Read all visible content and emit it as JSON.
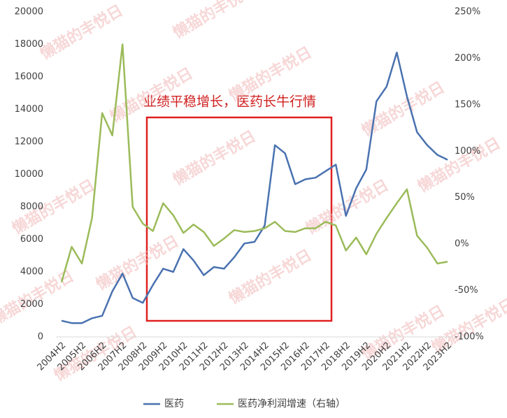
{
  "chart_data": {
    "type": "line",
    "categories": [
      "2004H2",
      null,
      "2005H2",
      null,
      "2006H2",
      null,
      "2007H2",
      null,
      "2008H2",
      null,
      "2009H2",
      null,
      "2010H2",
      null,
      "2011H2",
      null,
      "2012H2",
      null,
      "2013H2",
      null,
      "2014H2",
      null,
      "2015H2",
      null,
      "2016H2",
      null,
      "2017H2",
      null,
      "2018H2",
      null,
      "2019H2",
      null,
      "2020H2",
      null,
      "2021H2",
      null,
      "2022H2",
      null,
      "2023H2"
    ],
    "series": [
      {
        "name": "医药",
        "color": "#4a72b0",
        "axis": "y",
        "values": [
          1000,
          850,
          850,
          1150,
          1300,
          2800,
          3900,
          2400,
          2100,
          3200,
          4200,
          4000,
          5400,
          4700,
          3800,
          4300,
          4200,
          4900,
          5750,
          5850,
          6850,
          11800,
          11300,
          9400,
          9700,
          9800,
          10200,
          10600,
          7450,
          9150,
          10300,
          14500,
          15400,
          17500,
          14800,
          12600,
          11800,
          11200,
          10900
        ]
      },
      {
        "name": "医药净利润增速（右轴）",
        "color": "#9bbb59",
        "axis": "y2",
        "values": [
          -41,
          -3,
          -21,
          28,
          141,
          117,
          215,
          40,
          22,
          14,
          44,
          31,
          12,
          21,
          13,
          -2,
          6,
          15,
          13,
          14,
          17,
          24,
          14,
          13,
          17,
          17,
          24,
          20,
          -7,
          7,
          -11,
          11,
          28,
          44,
          59,
          9,
          -4,
          -21,
          -19
        ]
      }
    ],
    "ylim": [
      0,
      20000
    ],
    "yticks": [
      0,
      2000,
      4000,
      6000,
      8000,
      10000,
      12000,
      14000,
      16000,
      18000,
      20000
    ],
    "y2lim": [
      -100,
      250
    ],
    "y2ticks": [
      {
        "value": -100,
        "label": "-100%"
      },
      {
        "value": -50,
        "label": "-50%"
      },
      {
        "value": 0,
        "label": "0%"
      },
      {
        "value": 50,
        "label": "50%"
      },
      {
        "value": 100,
        "label": "100%"
      },
      {
        "value": 150,
        "label": "150%"
      },
      {
        "value": 200,
        "label": "200%"
      },
      {
        "value": 250,
        "label": "250%"
      }
    ],
    "annotation": "业绩平稳增长，医药长牛行情",
    "watermark": "懒猫的丰悦日",
    "grid": false
  }
}
